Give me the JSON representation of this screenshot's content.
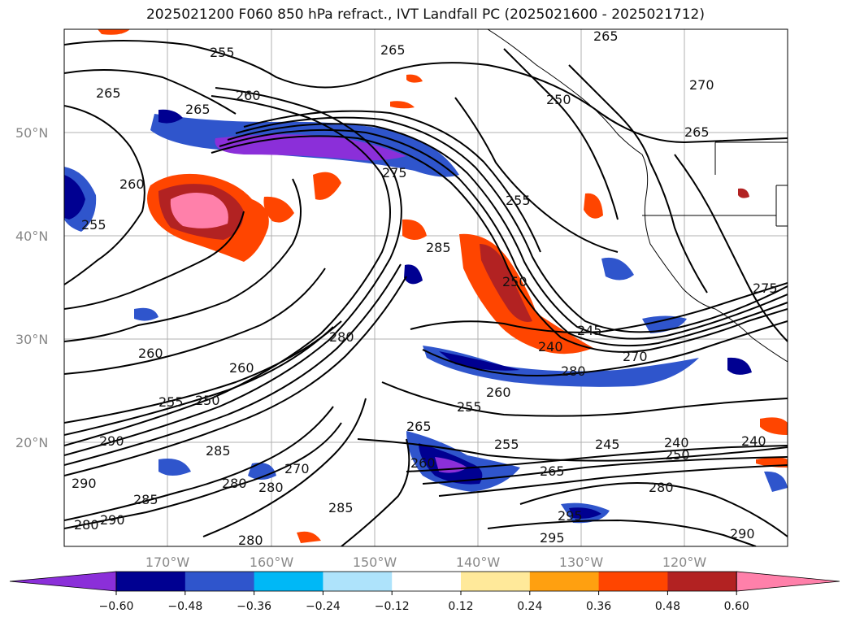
{
  "title": "2025021200 F060 850 hPa refract., IVT Landfall PC (2025021600 - 2025021712)",
  "latitude_labels": [
    "50°N",
    "40°N",
    "30°N",
    "20°N"
  ],
  "longitude_labels": [
    "170°W",
    "160°W",
    "150°W",
    "140°W",
    "130°W",
    "120°W"
  ],
  "colorbar": {
    "colors": [
      "#8b2fd9",
      "#000091",
      "#2f55cc",
      "#00b8f6",
      "#aee3fb",
      "#ffffff",
      "#ffe99a",
      "#ffa010",
      "#ff4500",
      "#b22222",
      "#ff80aa"
    ],
    "tick_labels": [
      "−0.60",
      "−0.48",
      "−0.36",
      "−0.24",
      "−0.12",
      "0.12",
      "0.24",
      "0.36",
      "0.48",
      "0.60"
    ]
  },
  "contour_labels": [
    "255",
    "265",
    "260",
    "265",
    "265",
    "260",
    "255",
    "285",
    "275",
    "255",
    "250",
    "280",
    "260",
    "280",
    "260",
    "255",
    "245",
    "240",
    "270",
    "255",
    "250",
    "260",
    "265",
    "255",
    "245",
    "240",
    "250",
    "280",
    "290",
    "285",
    "265",
    "290",
    "280",
    "280",
    "290",
    "270",
    "280",
    "285",
    "295",
    "295",
    "290",
    "275",
    "270",
    "265",
    "265",
    "240",
    "260",
    "250",
    "280",
    "285"
  ]
}
